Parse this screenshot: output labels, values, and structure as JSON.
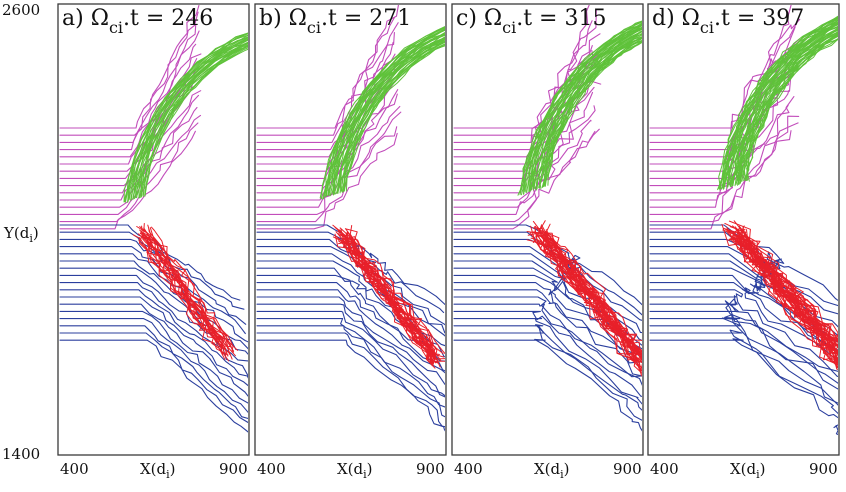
{
  "figure": {
    "panels": [
      {
        "letter": "a)",
        "omega": "Ω",
        "subscript": "ci",
        "rest": "t = 246",
        "phase": 0
      },
      {
        "letter": "b)",
        "omega": "Ω",
        "subscript": "ci",
        "rest": "t = 271",
        "phase": 1
      },
      {
        "letter": "c)",
        "omega": "Ω",
        "subscript": "ci",
        "rest": "t = 315",
        "phase": 2
      },
      {
        "letter": "d)",
        "omega": "Ω",
        "subscript": "ci",
        "rest": "t = 397",
        "phase": 3
      }
    ],
    "y_axis": {
      "top_tick": "2600",
      "bottom_tick": "1400",
      "label_main": "Y(d",
      "label_sub": "i",
      "label_close": ")"
    },
    "x_axis": {
      "left_tick": "400",
      "right_tick": "900",
      "label_main": "X(d",
      "label_sub": "i",
      "label_close": ")"
    },
    "colors": {
      "magenta": "#c24dbb",
      "green": "#5fc23a",
      "blue": "#2b3f9e",
      "red": "#e8202a"
    }
  }
}
